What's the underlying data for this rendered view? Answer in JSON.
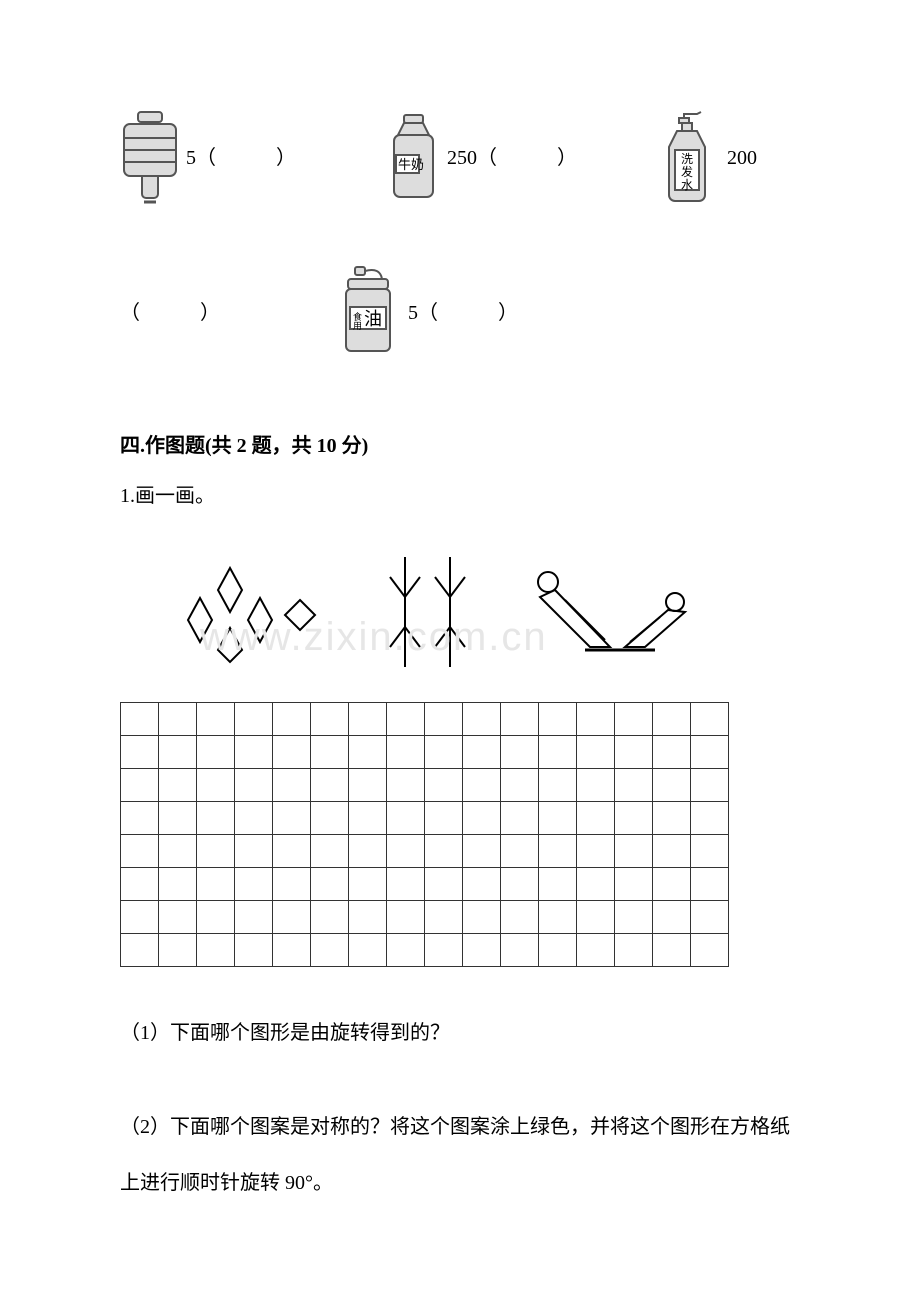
{
  "row1": {
    "water_jug": {
      "value": "5",
      "blank": "（　　　）"
    },
    "milk": {
      "label": "牛奶",
      "value": "250",
      "blank": "（　　　）"
    },
    "shampoo": {
      "label_top": "洗",
      "label_mid": "发",
      "label_bot": "水",
      "value": "200"
    }
  },
  "row2": {
    "left_blank": "（　　　）",
    "oil": {
      "label_small": "食用",
      "label_big": "油",
      "value": "5",
      "blank": "（　　　）"
    }
  },
  "section4": {
    "header": "四.作图题(共 2 题，共 10 分)",
    "q1": "1.画一画。",
    "sub1": "（1）下面哪个图形是由旋转得到的？",
    "sub2": "（2）下面哪个图案是对称的？将这个图案涂上绿色，并将这个图形在方格纸上进行顺时针旋转 90°。"
  },
  "watermark": "www.zixin.com.cn",
  "grid": {
    "rows": 8,
    "cols": 16
  },
  "colors": {
    "stroke": "#555555",
    "fill": "#dddddd",
    "text": "#000000"
  }
}
